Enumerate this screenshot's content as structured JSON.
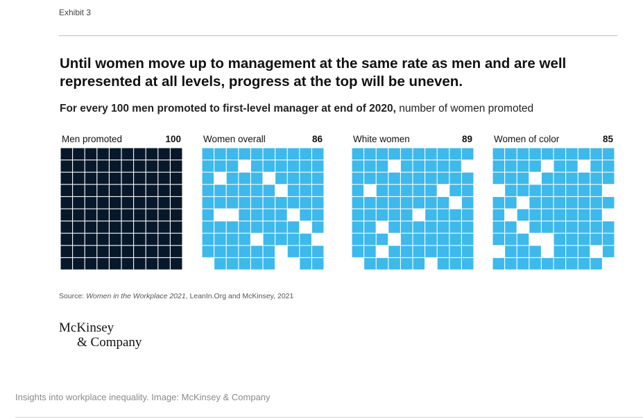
{
  "exhibit_label": "Exhibit 3",
  "headline": "Until women move up to management at the same rate as men and are well represented at all levels, progress at the top will be uneven.",
  "subhead": {
    "bold": "For every 100 men promoted to first-level manager at end of 2020,",
    "rest": " number of women promoted"
  },
  "colors": {
    "men": "#08182b",
    "women": "#3db9ec",
    "gap": "#ffffff"
  },
  "chart_data": {
    "type": "waffle",
    "grid_size": [
      10,
      10
    ],
    "panels": [
      {
        "label": "Men promoted",
        "value": 100,
        "empty_cells": []
      },
      {
        "label": "Women overall",
        "value": 86,
        "empty_cells": [
          13,
          21,
          25,
          36,
          51,
          52,
          57,
          68,
          74,
          79,
          86,
          90,
          96,
          97
        ]
      },
      {
        "label": "White women",
        "value": 89,
        "empty_cells": [
          13,
          19,
          31,
          37,
          48,
          55,
          62,
          73,
          82,
          90,
          96
        ]
      },
      {
        "label": "Women of color",
        "value": 85,
        "empty_cells": [
          14,
          17,
          23,
          30,
          39,
          42,
          51,
          59,
          62,
          73,
          74,
          80,
          84,
          88,
          99
        ]
      }
    ]
  },
  "source": {
    "prefix": "Source: ",
    "title": "Women in the Workplace 2021",
    "suffix": ", LeanIn.Org and McKinsey, 2021"
  },
  "logo": {
    "line1": "McKinsey",
    "line2": "& Company"
  },
  "caption": "Insights into workplace inequality. Image: McKinsey & Company"
}
